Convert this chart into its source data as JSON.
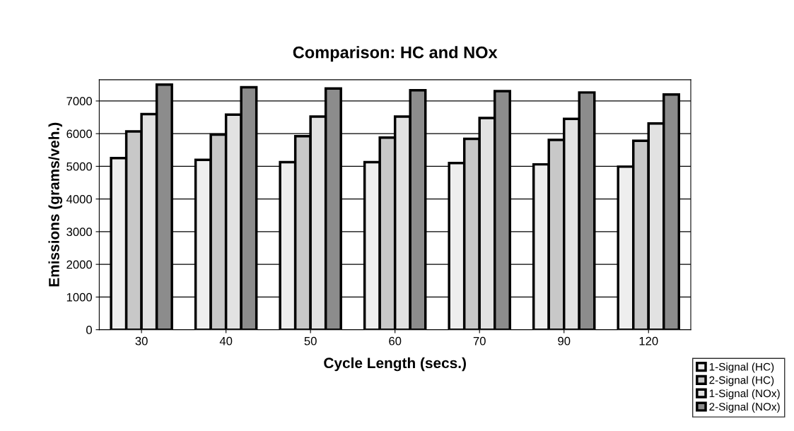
{
  "chart_data": {
    "type": "bar",
    "title": "Comparison: HC and NOx",
    "xlabel": "Cycle Length (secs.)",
    "ylabel": "Emissions (grams/veh.)",
    "categories": [
      "30",
      "40",
      "50",
      "60",
      "70",
      "90",
      "120"
    ],
    "series": [
      {
        "name": "1-Signal (HC)",
        "color": "#eeeeee",
        "values": [
          5250,
          5200,
          5130,
          5130,
          5100,
          5060,
          4990
        ]
      },
      {
        "name": "2-Signal (HC)",
        "color": "#c8c8c8",
        "values": [
          6070,
          5970,
          5920,
          5880,
          5840,
          5810,
          5780
        ]
      },
      {
        "name": "1-Signal (NOx)",
        "color": "#e2e2e2",
        "values": [
          6600,
          6580,
          6520,
          6520,
          6480,
          6450,
          6310
        ]
      },
      {
        "name": "2-Signal (NOx)",
        "color": "#8c8c8c",
        "values": [
          7500,
          7420,
          7380,
          7330,
          7300,
          7260,
          7200
        ]
      }
    ],
    "ylim": [
      0,
      7650
    ],
    "yticks": [
      0,
      1000,
      2000,
      3000,
      4000,
      5000,
      6000,
      7000
    ],
    "grid": "y",
    "legend": "bottom right"
  }
}
